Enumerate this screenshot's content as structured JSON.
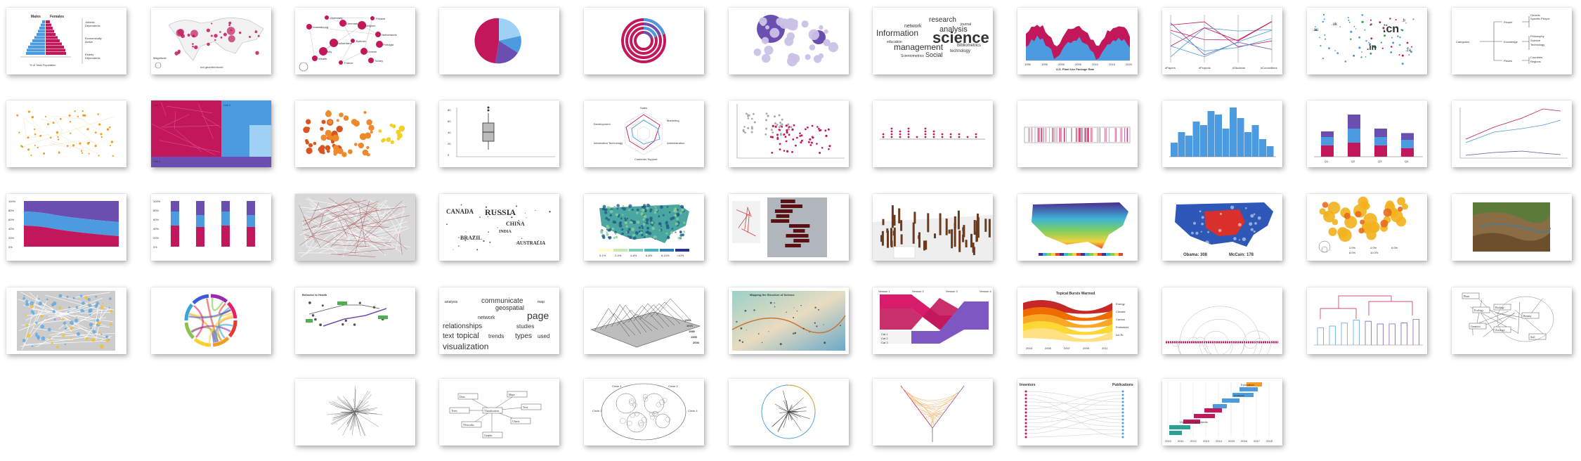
{
  "colors": {
    "magenta": "#c2185b",
    "blue": "#4c9be0",
    "lightblue": "#9fd0f5",
    "purple": "#6a4fb0",
    "orange": "#f0a020"
  },
  "thumbnails": [
    {
      "row": 0,
      "col": 0,
      "kind": "population-pyramid",
      "texts": {
        "left": "Males",
        "right": "Females",
        "xlabel": "% of Total Population",
        "l1": "Jobless",
        "l2": "Dependents",
        "l3": "Economically",
        "l4": "Active",
        "l5": "Elderly",
        "l6": "Dependents"
      }
    },
    {
      "row": 0,
      "col": 1,
      "kind": "bubble-map",
      "texts": {
        "legend": "Magnitude",
        "note": "not georeferenced"
      }
    },
    {
      "row": 0,
      "col": 2,
      "kind": "node-link-map",
      "texts": {
        "n1": "Guernsey",
        "n2": "Luxembourg",
        "n3": "Denmark",
        "n4": "Belgium",
        "n5": "Finland",
        "n6": "Netherlands",
        "n7": "Portugal",
        "n8": "Switzerland",
        "n9": "Bahrain",
        "n10": "Wealth",
        "n11": "Greece",
        "n12": "Italy",
        "n13": "France",
        "n14": "Turkey"
      }
    },
    {
      "row": 0,
      "col": 3,
      "kind": "pie"
    },
    {
      "row": 0,
      "col": 4,
      "kind": "donut-rings"
    },
    {
      "row": 0,
      "col": 5,
      "kind": "bubble-cluster"
    },
    {
      "row": 0,
      "col": 6,
      "kind": "word-cloud",
      "texts": {
        "w1": "science",
        "w2": "Information",
        "w3": "analysis",
        "w4": "management",
        "w5": "research",
        "w6": "Social",
        "w7": "network",
        "w8": "technology",
        "w9": "Bibliometrics",
        "w10": "Scientometrics",
        "w11": "education",
        "w12": "journal"
      }
    },
    {
      "row": 0,
      "col": 7,
      "kind": "stacked-area-time",
      "texts": {
        "xlabel": "U.S. Plant Use Package Rate",
        "t1": "1990",
        "t2": "1995",
        "t3": "2000",
        "t4": "2005",
        "t5": "2010",
        "t6": "2015",
        "t7": "2020"
      }
    },
    {
      "row": 0,
      "col": 8,
      "kind": "parallel-coordinates",
      "texts": {
        "a1": "#Papers",
        "a2": "#Projects",
        "a3": "#Students",
        "a4": "#Committees"
      }
    },
    {
      "row": 0,
      "col": 9,
      "kind": "scatter-text",
      "texts": {
        "w1": ".cn",
        "w2": ".in",
        "w3": ".au",
        "w4": ".uk",
        "w5": ".za",
        "w6": ".fr"
      }
    },
    {
      "row": 0,
      "col": 10,
      "kind": "tree-text",
      "texts": {
        "n1": "Categories",
        "n2": "People",
        "n3": "Knowledge",
        "n4": "Places",
        "n5": "Generic",
        "n6": "Specific People",
        "n7": "Philosophy",
        "n8": "Science",
        "n9": "Technology",
        "n10": "Countries",
        "n11": "Regions"
      }
    },
    {
      "row": 1,
      "col": 0,
      "kind": "dot-scatter-orange"
    },
    {
      "row": 1,
      "col": 1,
      "kind": "treemap",
      "texts": {
        "c1": "Cell 1",
        "c2": "Cell 2",
        "c3": "Cell 3"
      }
    },
    {
      "row": 1,
      "col": 2,
      "kind": "bubble-grid"
    },
    {
      "row": 1,
      "col": 3,
      "kind": "box-plot",
      "texts": {
        "y1": "80",
        "y2": "60",
        "y3": "40",
        "y4": "20",
        "y5": "0"
      }
    },
    {
      "row": 1,
      "col": 4,
      "kind": "radar",
      "texts": {
        "a1": "Sales",
        "a2": "Marketing",
        "a3": "Development",
        "a4": "Customer Support",
        "a5": "Information Technology",
        "a6": "Administration"
      }
    },
    {
      "row": 1,
      "col": 5,
      "kind": "scatter-two"
    },
    {
      "row": 1,
      "col": 6,
      "kind": "dot-strip"
    },
    {
      "row": 1,
      "col": 7,
      "kind": "rug-plot"
    },
    {
      "row": 1,
      "col": 8,
      "kind": "histogram"
    },
    {
      "row": 1,
      "col": 9,
      "kind": "stacked-bar-3",
      "texts": {
        "c1": "Q1",
        "c2": "Q2",
        "c3": "Q3",
        "c4": "Q4"
      }
    },
    {
      "row": 1,
      "col": 10,
      "kind": "line-chart-3"
    },
    {
      "row": 2,
      "col": 0,
      "kind": "stream-area",
      "texts": {
        "y1": "100%",
        "y2": "80%",
        "y3": "60%",
        "y4": "40%",
        "y5": "20%",
        "y6": "0%"
      }
    },
    {
      "row": 2,
      "col": 1,
      "kind": "stacked-bar-100",
      "texts": {
        "y1": "100%",
        "y2": "80%",
        "y3": "60%",
        "y4": "40%",
        "y5": "20%",
        "y6": "0%"
      }
    },
    {
      "row": 2,
      "col": 2,
      "kind": "street-map-gray"
    },
    {
      "row": 2,
      "col": 3,
      "kind": "word-map",
      "texts": {
        "w1": "RUSSIA",
        "w2": "CANADA",
        "w3": "CHINA",
        "w4": "BRAZIL",
        "w5": "AUSTRALIA",
        "w6": "INDIA"
      }
    },
    {
      "row": 2,
      "col": 4,
      "kind": "choropleth-us",
      "texts": {
        "l1": "0-1%",
        "l2": "2-4%",
        "l3": "4-6%",
        "l4": "6-8%",
        "l5": "8-10%",
        "l6": ">10%"
      }
    },
    {
      "row": 2,
      "col": 5,
      "kind": "3d-bars-photo"
    },
    {
      "row": 2,
      "col": 6,
      "kind": "3d-map-spikes"
    },
    {
      "row": 2,
      "col": 7,
      "kind": "heat-map-us"
    },
    {
      "row": 2,
      "col": 8,
      "kind": "election-map",
      "texts": {
        "left": "Obama: 308",
        "right": "McCain: 178"
      }
    },
    {
      "row": 2,
      "col": 9,
      "kind": "bubble-map-orange",
      "texts": {
        "l1": "2.0%",
        "l2": "4.0%",
        "l3": "6.0%",
        "l4": "8.0%",
        "l5": "10.0%"
      }
    },
    {
      "row": 2,
      "col": 10,
      "kind": "terrain-photo"
    },
    {
      "row": 3,
      "col": 0,
      "kind": "city-map-color"
    },
    {
      "row": 3,
      "col": 1,
      "kind": "chord-diagram"
    },
    {
      "row": 3,
      "col": 2,
      "kind": "science-map",
      "texts": {
        "title": "Behavior to Health"
      }
    },
    {
      "row": 3,
      "col": 3,
      "kind": "word-cloud-orange",
      "texts": {
        "w1": "communicate",
        "w2": "geospatial",
        "w3": "page",
        "w4": "network",
        "w5": "studies",
        "w6": "relationships",
        "w7": "text",
        "w8": "topical",
        "w9": "trends",
        "w10": "types",
        "w11": "used",
        "w12": "visualization",
        "w13": "analysis",
        "w14": "map"
      }
    },
    {
      "row": 3,
      "col": 4,
      "kind": "3d-surface",
      "texts": {
        "y1": "1960",
        "y2": "1970",
        "y3": "1980",
        "y4": "1990",
        "y5": "2000"
      }
    },
    {
      "row": 3,
      "col": 5,
      "kind": "science-poster",
      "texts": {
        "title": "Mapping the Structure of Science"
      }
    },
    {
      "row": 3,
      "col": 6,
      "kind": "alluvial-4",
      "texts": {
        "a1": "Version 1",
        "a2": "Version 2",
        "a3": "Version 3",
        "a4": "Version 4",
        "l1": "Cat 1",
        "l2": "Cat 2",
        "l3": "Cat 3"
      }
    },
    {
      "row": 3,
      "col": 7,
      "kind": "streamgraph",
      "texts": {
        "title": "Topical Bursts Warmed",
        "s1": "Energy",
        "s2": "Climate",
        "s3": "Carbon",
        "s4": "Emissions",
        "s5": "Ice-Ri",
        "t1": "2003",
        "t2": "2005",
        "t3": "2007",
        "t4": "2009",
        "t5": "2011"
      }
    },
    {
      "row": 3,
      "col": 8,
      "kind": "arc-diagram"
    },
    {
      "row": 3,
      "col": 9,
      "kind": "dendrogram"
    },
    {
      "row": 3,
      "col": 10,
      "kind": "network-boxes",
      "texts": {
        "n1": "Plant",
        "n2": "Ecology",
        "n3": "Biology",
        "n4": "Genetics",
        "n5": "Zoology",
        "n6": "Botany",
        "n7": "Soil"
      }
    },
    {
      "row": 4,
      "col": 2,
      "kind": "radial-tree"
    },
    {
      "row": 4,
      "col": 3,
      "kind": "concept-map",
      "texts": {
        "n1": "Visualization",
        "n2": "Data",
        "n3": "Maps",
        "n4": "Networks",
        "n5": "Charts",
        "n6": "Graphs",
        "n7": "Trees",
        "n8": "Text"
      }
    },
    {
      "row": 4,
      "col": 4,
      "kind": "circle-packing",
      "texts": {
        "c1": "Circle 1",
        "c2": "Circle 2",
        "c3": "Circle 3",
        "c4": "Circle 4"
      }
    },
    {
      "row": 4,
      "col": 5,
      "kind": "radial-dendrogram"
    },
    {
      "row": 4,
      "col": 6,
      "kind": "hive-plot"
    },
    {
      "row": 4,
      "col": 7,
      "kind": "bipartite",
      "texts": {
        "left": "Inventors",
        "right": "Publications"
      }
    },
    {
      "row": 4,
      "col": 8,
      "kind": "gantt",
      "texts": {
        "t1": "2010",
        "t2": "2011",
        "t3": "2012",
        "t4": "2013",
        "t5": "2014",
        "t6": "2015",
        "t7": "2016",
        "t8": "2017",
        "t9": "2018",
        "b1": "Evaluation",
        "b2": "Analysis",
        "b3": "High-end Experiments"
      }
    }
  ]
}
